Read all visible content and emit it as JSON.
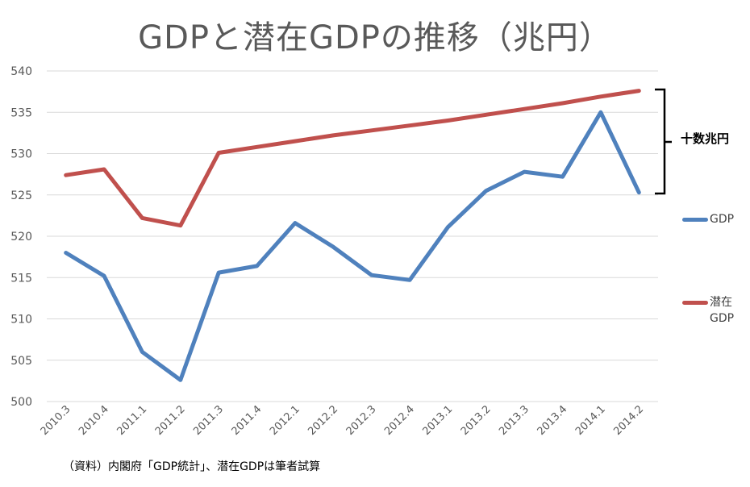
{
  "title": "GDPと潜在GDPの推移（兆円）",
  "source_note": "（資料）内閣府「GDP統計」、潜在GDPは筆者試算",
  "annotation": {
    "label": "十数兆円"
  },
  "colors": {
    "gdp": "#4f81bd",
    "potential": "#c0504d",
    "grid": "#d9d9d9",
    "axis_text": "#595959"
  },
  "chart_data": {
    "type": "line",
    "title": "GDPと潜在GDPの推移（兆円）",
    "xlabel": "",
    "ylabel": "",
    "ylim": [
      500,
      540
    ],
    "yticks": [
      500,
      505,
      510,
      515,
      520,
      525,
      530,
      535,
      540
    ],
    "grid": true,
    "legend_position": "right",
    "categories": [
      "2010.3",
      "2010.4",
      "2011.1",
      "2011.2",
      "2011.3",
      "2011.4",
      "2012.1",
      "2012.2",
      "2012.3",
      "2012.4",
      "2013.1",
      "2013.2",
      "2013.3",
      "2013.4",
      "2014.1",
      "2014.2"
    ],
    "series": [
      {
        "name": "GDP",
        "color": "#4f81bd",
        "values": [
          518.0,
          515.2,
          506.0,
          502.6,
          515.6,
          516.4,
          521.6,
          518.7,
          515.3,
          514.7,
          521.1,
          525.5,
          527.8,
          527.2,
          535.0,
          525.3
        ]
      },
      {
        "name": "潜在GDP",
        "color": "#c0504d",
        "values": [
          527.4,
          528.1,
          522.2,
          521.3,
          530.1,
          530.8,
          531.5,
          532.2,
          532.8,
          533.4,
          534.0,
          534.7,
          535.4,
          536.1,
          536.9,
          537.6
        ]
      }
    ]
  }
}
